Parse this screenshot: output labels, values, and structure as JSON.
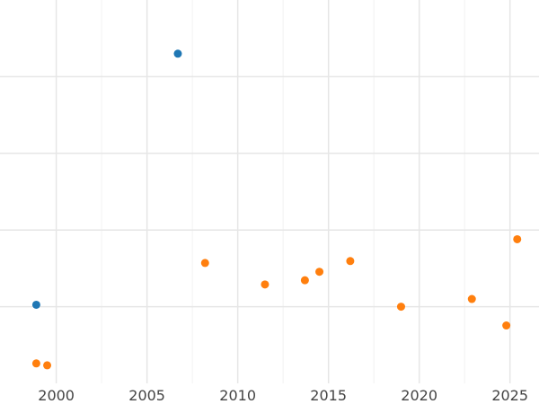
{
  "chart_data": {
    "type": "scatter",
    "title": "",
    "xlabel": "",
    "ylabel": "",
    "xlim": [
      1996.9,
      2026.6
    ],
    "ylim": [
      0,
      100
    ],
    "x_ticks": [
      2000,
      2005,
      2010,
      2015,
      2020,
      2025
    ],
    "x_tick_labels": [
      "2000",
      "2005",
      "2010",
      "2015",
      "2020",
      "2025"
    ],
    "y_gridlines": [
      20,
      40,
      60,
      80
    ],
    "x_grid_major": [
      2000,
      2005,
      2010,
      2015,
      2020,
      2025
    ],
    "x_grid_minor": [
      2002.5,
      2007.5,
      2012.5,
      2017.5,
      2022.5
    ],
    "grid": true,
    "legend": "none",
    "series": [
      {
        "color": "#1f77b4",
        "points": [
          {
            "x": 2006.7,
            "y": 86
          },
          {
            "x": 1998.9,
            "y": 20.5
          }
        ]
      },
      {
        "color": "#ff7f0e",
        "points": [
          {
            "x": 1998.9,
            "y": 5.2
          },
          {
            "x": 1999.5,
            "y": 4.7
          },
          {
            "x": 2008.2,
            "y": 31.4
          },
          {
            "x": 2011.5,
            "y": 25.8
          },
          {
            "x": 2013.7,
            "y": 26.9
          },
          {
            "x": 2014.5,
            "y": 29.1
          },
          {
            "x": 2016.2,
            "y": 31.9
          },
          {
            "x": 2019.0,
            "y": 20.0
          },
          {
            "x": 2022.9,
            "y": 22.0
          },
          {
            "x": 2024.8,
            "y": 15.1
          },
          {
            "x": 2025.4,
            "y": 37.6
          }
        ]
      }
    ]
  }
}
